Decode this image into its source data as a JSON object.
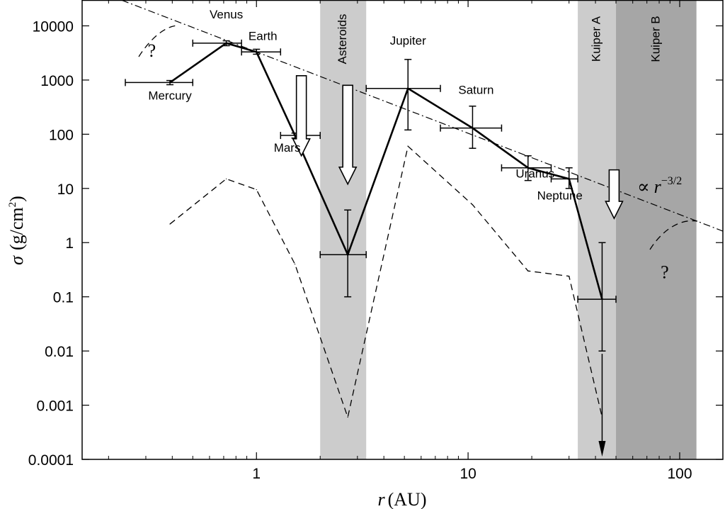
{
  "chart_data": {
    "type": "line",
    "x_scale": "log",
    "y_scale": "log",
    "xlim": [
      0.15,
      160
    ],
    "ylim": [
      0.0001,
      30000
    ],
    "x_ticks": [
      {
        "value": 1,
        "label": "1"
      },
      {
        "value": 10,
        "label": "10"
      },
      {
        "value": 100,
        "label": "100"
      }
    ],
    "y_ticks": [
      {
        "value": 10000,
        "label": "10000"
      },
      {
        "value": 1000,
        "label": "1000"
      },
      {
        "value": 100,
        "label": "100"
      },
      {
        "value": 10,
        "label": "10"
      },
      {
        "value": 1,
        "label": "1"
      },
      {
        "value": 0.1,
        "label": "0.1"
      },
      {
        "value": 0.01,
        "label": "0.01"
      },
      {
        "value": 0.001,
        "label": "0.001"
      },
      {
        "value": 0.0001,
        "label": "0.0001"
      }
    ],
    "xlabel_var": "r",
    "xlabel_unit": "(AU)",
    "ylabel_var": "σ",
    "ylabel_unit_prefix": "(g/cm",
    "ylabel_unit_exp": "2",
    "ylabel_unit_suffix": ")",
    "regions": [
      {
        "label": "Asteroids",
        "x0": 2.0,
        "x1": 3.3,
        "color": "#cccccc"
      },
      {
        "label": "Kuiper A",
        "x0": 33,
        "x1": 50,
        "color": "#cccccc"
      },
      {
        "label": "Kuiper B",
        "x0": 50,
        "x1": 120,
        "color": "#a6a6a6"
      }
    ],
    "planets": [
      {
        "name": "Mercury",
        "r": 0.39,
        "sigma": 900,
        "xerr": [
          0.24,
          0.5
        ],
        "yerr": [
          820,
          980
        ]
      },
      {
        "name": "Venus",
        "r": 0.72,
        "sigma": 4800,
        "xerr": [
          0.5,
          0.85
        ],
        "yerr": [
          4300,
          5300
        ]
      },
      {
        "name": "Earth",
        "r": 1.0,
        "sigma": 3300,
        "xerr": [
          0.85,
          1.3
        ],
        "yerr": [
          3000,
          3700
        ]
      },
      {
        "name": "Mars",
        "r": 1.52,
        "sigma": 95,
        "xerr": [
          1.3,
          2.0
        ],
        "yerr": [
          85,
          105
        ]
      },
      {
        "name": "Asteroids",
        "r": 2.7,
        "sigma": 0.6,
        "xerr": [
          2.0,
          3.3
        ],
        "yerr": [
          0.1,
          4
        ]
      },
      {
        "name": "Jupiter",
        "r": 5.2,
        "sigma": 700,
        "xerr": [
          3.3,
          7.4
        ],
        "yerr": [
          120,
          2400
        ]
      },
      {
        "name": "Saturn",
        "r": 10.5,
        "sigma": 130,
        "xerr": [
          7.4,
          14.4
        ],
        "yerr": [
          55,
          330
        ]
      },
      {
        "name": "Uranus",
        "r": 19.2,
        "sigma": 24,
        "xerr": [
          14.4,
          24.7
        ],
        "yerr": [
          14,
          40
        ]
      },
      {
        "name": "Neptune",
        "r": 30,
        "sigma": 15,
        "xerr": [
          24.7,
          33
        ],
        "yerr": [
          10,
          24
        ]
      },
      {
        "name": "Kuiper",
        "r": 43,
        "sigma": 0.09,
        "xerr": [
          33,
          50
        ],
        "yerr": [
          0.01,
          1
        ]
      }
    ],
    "dashed_series": [
      {
        "r": 0.39,
        "sigma": 2.2
      },
      {
        "r": 0.72,
        "sigma": 15
      },
      {
        "r": 1.0,
        "sigma": 9.5
      },
      {
        "r": 1.52,
        "sigma": 0.4
      },
      {
        "r": 2.7,
        "sigma": 0.0006
      },
      {
        "r": 5.2,
        "sigma": 60
      },
      {
        "r": 10.5,
        "sigma": 5
      },
      {
        "r": 19.2,
        "sigma": 0.3
      },
      {
        "r": 30,
        "sigma": 0.24
      },
      {
        "r": 43,
        "sigma": 0.0006
      }
    ],
    "power_law": {
      "label_prefix": "∝",
      "label_var": "r",
      "label_exp": "−3/2",
      "exponent": -1.5,
      "sigma_at_1AU": 3300
    },
    "question_marks": [
      {
        "label": "?",
        "r": 0.32,
        "sigma": 2700
      },
      {
        "label": "?",
        "r": 85,
        "sigma": 0.22
      }
    ],
    "arrows_down": [
      {
        "r": 1.63,
        "from": 1200,
        "to": 40
      },
      {
        "r": 2.7,
        "from": 800,
        "to": 12
      },
      {
        "r": 49,
        "from": 22,
        "to": 2.8
      }
    ]
  }
}
